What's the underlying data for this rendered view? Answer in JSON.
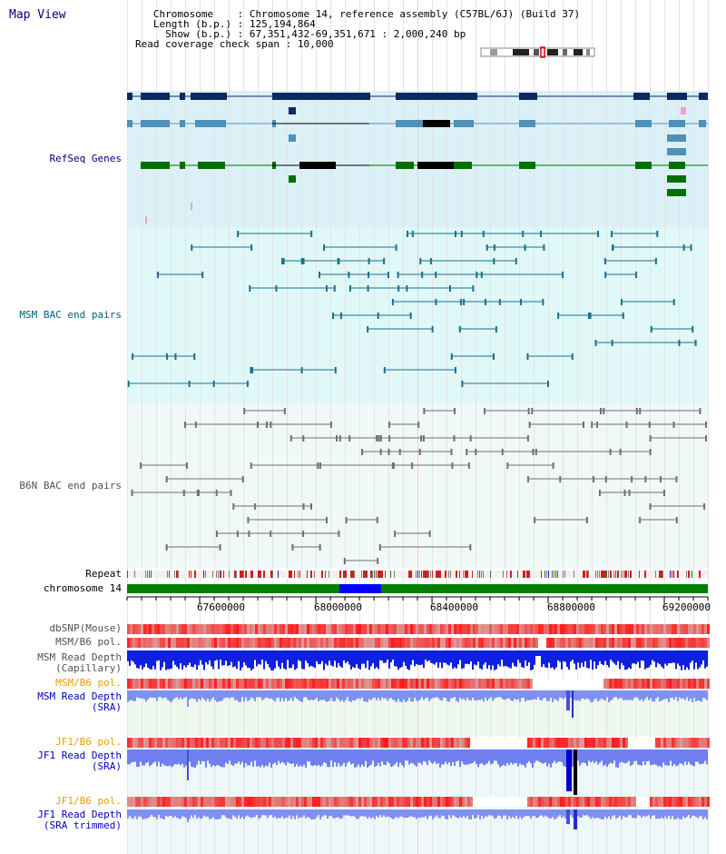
{
  "window_title": "Map View",
  "header": {
    "chromosome_label": "Chromosome",
    "chromosome_value": "Chromosome 14, reference assembly (C57BL/6J) (Build 37)",
    "length_label": "Length (b.p.)",
    "length_value": "125,194,864",
    "show_label": "Show (b.p.)",
    "show_value": "67,351,432-69,351,671 : 2,000,240 bp",
    "coverage_label": "Read coverage check span",
    "coverage_value": "10,000"
  },
  "tracks": {
    "refseq": "RefSeq Genes",
    "msm_bac": "MSM BAC end pairs",
    "b6n_bac": "B6N BAC end pairs",
    "repeat": "Repeat",
    "chromosome": "chromosome 14",
    "dbsnp": "dbSNP(Mouse)",
    "msm_b6_pol_1": "MSM/B6 pol.",
    "msm_depth_cap_1": "MSM Read Depth",
    "msm_depth_cap_2": "(Capillary)",
    "msm_b6_pol_2": "MSM/B6 pol.",
    "msm_depth_sra_1": "MSM Read Depth",
    "msm_depth_sra_2": "(SRA)",
    "jf1_b6_pol_1": "JF1/B6 pol.",
    "jf1_depth_sra_1": "JF1 Read Depth",
    "jf1_depth_sra_2": "(SRA)",
    "jf1_b6_pol_2": "JF1/B6 pol.",
    "jf1_depth_trim_1": "JF1 Read Depth",
    "jf1_depth_trim_2": "(SRA trimmed)"
  },
  "ruler": {
    "ticks": [
      "67600000",
      "68000000",
      "68400000",
      "68800000",
      "69200000"
    ]
  },
  "colors": {
    "label_navy": "#000080",
    "label_teal": "#006080",
    "label_gray": "#505050",
    "label_orange": "#e8a000",
    "label_blue": "#0000c0",
    "refseq_bg": "#dcf0f8",
    "bac_bg": "#e0f8f8",
    "chrom_green": "#008000",
    "chrom_blue": "#0000ff"
  }
}
